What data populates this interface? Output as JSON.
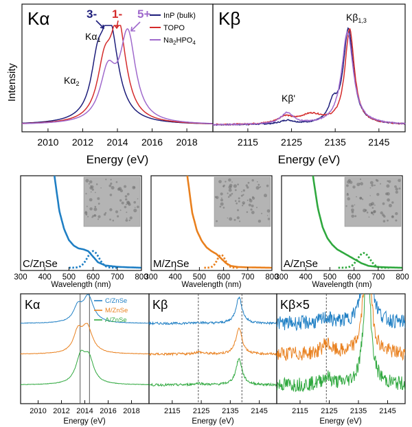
{
  "colors": {
    "inp": "#1c1c7a",
    "topo": "#d42a2a",
    "naphos": "#9f69cc",
    "c_znse": "#1f7fc4",
    "m_znse": "#e9801e",
    "a_znse": "#2fa83e",
    "axis": "#111111",
    "vline": "#444444"
  },
  "chart_data": [
    {
      "id": "top-kalpha",
      "type": "line",
      "title": "Kα",
      "xlabel": "Energy (eV)",
      "ylabel": "Intensity",
      "xlim": [
        2008.5,
        2019.5
      ],
      "ylim": [
        0,
        1.08
      ],
      "xticks": [
        2010,
        2012,
        2014,
        2016,
        2018
      ],
      "annotations": [
        {
          "label": "Kα",
          "sub": "2",
          "x": 2012.2
        },
        {
          "label": "Kα",
          "sub": "1",
          "x": 2013.0
        }
      ],
      "oxidation_labels": [
        "3-",
        "1-",
        "5+"
      ],
      "legend": [
        "InP (bulk)",
        "TOPO",
        "Na2HPO4"
      ],
      "series": [
        {
          "name": "InP (bulk)",
          "color": "inp",
          "peaks": [
            [
              2013.55,
              1.0,
              0.6
            ],
            [
              2012.85,
              0.45,
              0.45
            ]
          ]
        },
        {
          "name": "TOPO",
          "color": "topo",
          "peaks": [
            [
              2014.05,
              1.0,
              0.55
            ],
            [
              2013.25,
              0.5,
              0.5
            ]
          ]
        },
        {
          "name": "Na2HPO4",
          "color": "naphos",
          "peaks": [
            [
              2014.6,
              0.92,
              0.55
            ],
            [
              2013.45,
              0.5,
              0.55
            ]
          ]
        }
      ]
    },
    {
      "id": "top-kbeta",
      "type": "line",
      "title": "Kβ",
      "xlabel": "Energy (eV)",
      "xlim": [
        2107,
        2151
      ],
      "ylim": [
        0,
        1.08
      ],
      "xticks": [
        2115,
        2125,
        2135,
        2145
      ],
      "annotations": [
        {
          "label": "Kβ",
          "sub": "1,3",
          "x": 2138
        },
        {
          "label": "Kβ'",
          "sub": "",
          "x": 2124
        }
      ],
      "series": [
        {
          "name": "InP (bulk)",
          "color": "inp",
          "peaks": [
            [
              2138.0,
              1.0,
              1.4
            ],
            [
              2134.5,
              0.18,
              1.2
            ],
            [
              2124.0,
              0.04,
              2.0
            ]
          ]
        },
        {
          "name": "TOPO",
          "color": "topo",
          "peaks": [
            [
              2138.3,
              1.0,
              1.3
            ],
            [
              2129.5,
              0.1,
              3.5
            ],
            [
              2123.5,
              0.07,
              2.0
            ]
          ]
        },
        {
          "name": "Na2HPO4",
          "color": "naphos",
          "peaks": [
            [
              2137.8,
              0.98,
              1.6
            ],
            [
              2124.0,
              0.12,
              1.8
            ]
          ]
        }
      ]
    },
    {
      "id": "abs-c",
      "type": "line",
      "label": "C/ZnSe",
      "color": "c_znse",
      "xlabel": "Wavelength (nm)",
      "xlim": [
        300,
        800
      ],
      "xticks": [
        300,
        400,
        500,
        600,
        700,
        800
      ],
      "absorption": {
        "x": [
          440,
          460,
          480,
          500,
          520,
          540,
          560,
          580,
          600,
          620,
          650,
          700,
          750,
          800
        ],
        "y": [
          1.0,
          0.62,
          0.42,
          0.3,
          0.24,
          0.21,
          0.2,
          0.18,
          0.12,
          0.06,
          0.025,
          0.01,
          0.004,
          0.0
        ]
      },
      "emission_peak": [
        600,
        0.18,
        40
      ]
    },
    {
      "id": "abs-m",
      "type": "line",
      "label": "M/ZnSe",
      "color": "m_znse",
      "xlabel": "Wavelength (nm)",
      "xlim": [
        300,
        800
      ],
      "xticks": [
        300,
        400,
        500,
        600,
        700,
        800
      ],
      "absorption": {
        "x": [
          450,
          470,
          490,
          510,
          530,
          550,
          570,
          590,
          610,
          630,
          660,
          700,
          750,
          800
        ],
        "y": [
          1.0,
          0.6,
          0.4,
          0.29,
          0.22,
          0.18,
          0.15,
          0.1,
          0.05,
          0.02,
          0.008,
          0.004,
          0.002,
          0.0
        ]
      },
      "emission_peak": [
        590,
        0.14,
        28
      ]
    },
    {
      "id": "abs-a",
      "type": "line",
      "label": "A/ZnSe",
      "color": "a_znse",
      "xlabel": "Wavelength (nm)",
      "xlim": [
        300,
        800
      ],
      "xticks": [
        300,
        400,
        500,
        600,
        700,
        800
      ],
      "absorption": {
        "x": [
          430,
          450,
          470,
          490,
          510,
          530,
          550,
          570,
          590,
          610,
          630,
          660,
          700,
          750,
          800
        ],
        "y": [
          1.0,
          0.65,
          0.44,
          0.32,
          0.25,
          0.2,
          0.17,
          0.14,
          0.11,
          0.08,
          0.05,
          0.02,
          0.008,
          0.003,
          0.0
        ]
      },
      "emission_peak": [
        640,
        0.16,
        42
      ]
    },
    {
      "id": "bot-kalpha",
      "type": "line",
      "title": "Kα",
      "xlabel": "Energy (eV)",
      "xlim": [
        2008.5,
        2019.5
      ],
      "xticks": [
        2010,
        2012,
        2014,
        2016,
        2018
      ],
      "vlines": [
        2013.6,
        2014.4
      ],
      "legend": [
        "C/ZnSe",
        "M/ZnSe",
        "A/ZnSe"
      ],
      "series": [
        {
          "name": "C/ZnSe",
          "color": "c_znse",
          "peaks": [
            [
              2014.3,
              1.0,
              0.55
            ],
            [
              2013.4,
              0.55,
              0.45
            ]
          ]
        },
        {
          "name": "M/ZnSe",
          "color": "m_znse",
          "peaks": [
            [
              2014.2,
              1.0,
              0.55
            ],
            [
              2013.4,
              0.75,
              0.45
            ]
          ]
        },
        {
          "name": "A/ZnSe",
          "color": "a_znse",
          "peaks": [
            [
              2013.65,
              1.0,
              0.5
            ],
            [
              2014.35,
              0.9,
              0.5
            ]
          ]
        }
      ]
    },
    {
      "id": "bot-kbeta",
      "type": "line",
      "title": "Kβ",
      "xlabel": "Energy (eV)",
      "xlim": [
        2107,
        2151
      ],
      "xticks": [
        2115,
        2125,
        2135,
        2145
      ],
      "vlines": [
        2124,
        2139
      ],
      "series": [
        {
          "name": "C/ZnSe",
          "color": "c_znse",
          "peaks": [
            [
              2138.0,
              1.0,
              1.3
            ],
            [
              2124.0,
              0.04,
              1.8
            ]
          ]
        },
        {
          "name": "M/ZnSe",
          "color": "m_znse",
          "peaks": [
            [
              2138.0,
              1.0,
              1.3
            ],
            [
              2124.0,
              0.08,
              1.8
            ]
          ]
        },
        {
          "name": "A/ZnSe",
          "color": "a_znse",
          "peaks": [
            [
              2138.0,
              1.0,
              1.3
            ],
            [
              2124.0,
              0.06,
              1.8
            ]
          ]
        }
      ]
    },
    {
      "id": "bot-kbeta5",
      "type": "line",
      "title": "Kβ×5",
      "xlabel": "Energy (eV)",
      "xlim": [
        2107,
        2151
      ],
      "xticks": [
        2115,
        2125,
        2135,
        2145
      ],
      "vlines": [
        2124
      ],
      "series": [
        {
          "name": "C/ZnSe",
          "color": "c_znse",
          "peaks": [
            [
              2138.0,
              5.0,
              1.3
            ],
            [
              2124.0,
              0.2,
              1.8
            ]
          ]
        },
        {
          "name": "M/ZnSe",
          "color": "m_znse",
          "peaks": [
            [
              2138.0,
              5.0,
              1.3
            ],
            [
              2124.0,
              0.4,
              1.8
            ]
          ]
        },
        {
          "name": "A/ZnSe",
          "color": "a_znse",
          "peaks": [
            [
              2138.0,
              5.0,
              1.3
            ],
            [
              2124.0,
              0.3,
              1.8
            ]
          ]
        }
      ]
    }
  ]
}
